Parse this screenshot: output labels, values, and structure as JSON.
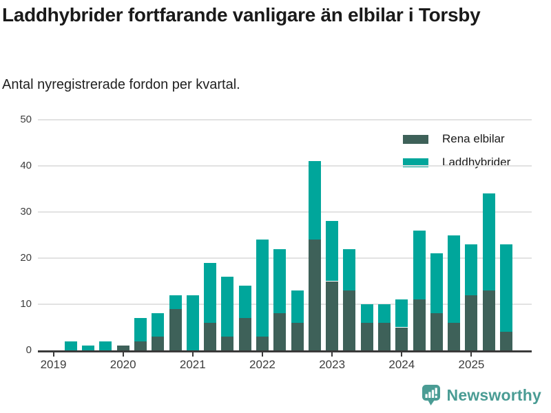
{
  "header": {
    "title": "Laddhybrider fortfarande vanligare än elbilar i Torsby",
    "subtitle": "Antal nyregistrerade fordon per kvartal."
  },
  "chart_data": {
    "type": "bar",
    "stacked": true,
    "title": "Laddhybrider fortfarande vanligare än elbilar i Torsby",
    "subtitle": "Antal nyregistrerade fordon per kvartal.",
    "x": [
      "2019 Q1",
      "2019 Q2",
      "2019 Q3",
      "2019 Q4",
      "2020 Q1",
      "2020 Q2",
      "2020 Q3",
      "2020 Q4",
      "2021 Q1",
      "2021 Q2",
      "2021 Q3",
      "2021 Q4",
      "2022 Q1",
      "2022 Q2",
      "2022 Q3",
      "2022 Q4",
      "2023 Q1",
      "2023 Q2",
      "2023 Q3",
      "2023 Q4",
      "2024 Q1",
      "2024 Q2",
      "2024 Q3",
      "2024 Q4",
      "2025 Q1",
      "2025 Q2",
      "2025 Q3"
    ],
    "series": [
      {
        "name": "Rena elbilar",
        "color": "#3e6159",
        "values": [
          0,
          0,
          0,
          0,
          1,
          2,
          3,
          9,
          0,
          6,
          3,
          7,
          3,
          8,
          6,
          24,
          15,
          13,
          6,
          6,
          5,
          11,
          8,
          6,
          12,
          13,
          4
        ]
      },
      {
        "name": "Laddhybrider",
        "color": "#00a69b",
        "values": [
          0,
          2,
          1,
          2,
          0,
          5,
          5,
          3,
          12,
          13,
          13,
          7,
          21,
          14,
          7,
          17,
          13,
          9,
          4,
          4,
          6,
          15,
          13,
          19,
          11,
          21,
          19
        ]
      }
    ],
    "xticks": [
      "2019",
      "2020",
      "2021",
      "2022",
      "2023",
      "2024",
      "2025"
    ],
    "yticks": [
      0,
      10,
      20,
      30,
      40,
      50
    ],
    "ylim": [
      0,
      50
    ],
    "xlabel": "",
    "ylabel": "",
    "grid": "horizontal",
    "legend_position": "top-right"
  },
  "footer": {
    "brand": "Newsworthy",
    "brand_color": "#4a9c94"
  }
}
